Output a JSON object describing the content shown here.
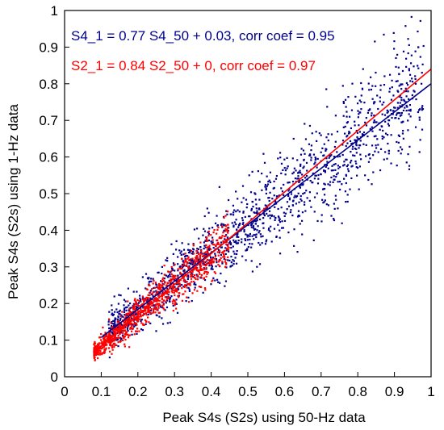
{
  "chart_data": {
    "type": "scatter",
    "xlabel": "Peak S4s (S2s) using 50-Hz data",
    "ylabel": "Peak S4s (S2s) using 1-Hz data",
    "xlim": [
      0,
      1
    ],
    "ylim": [
      0,
      1
    ],
    "xticks": [
      "0",
      "0.1",
      "0.2",
      "0.3",
      "0.4",
      "0.5",
      "0.6",
      "0.7",
      "0.8",
      "0.9",
      "1"
    ],
    "yticks": [
      "0",
      "0.1",
      "0.2",
      "0.3",
      "0.4",
      "0.5",
      "0.6",
      "0.7",
      "0.8",
      "0.9",
      "1"
    ],
    "grid": false,
    "series": [
      {
        "name": "S4",
        "color": "#00008b",
        "fit": {
          "slope": 0.77,
          "intercept": 0.03,
          "x_range": [
            0.1,
            1.0
          ]
        },
        "x_range": [
          0.12,
          0.98
        ],
        "spread": 0.055,
        "count": 1500,
        "annotation": "S4_1 = 0.77 S4_50 + 0.03, corr coef = 0.95"
      },
      {
        "name": "S2",
        "color": "#ff0000",
        "fit": {
          "slope": 0.84,
          "intercept": 0,
          "x_range": [
            0.1,
            1.0
          ]
        },
        "x_range": [
          0.08,
          0.45
        ],
        "spread": 0.025,
        "count": 1000,
        "annotation": "S2_1 = 0.84 S2_50 + 0, corr coef = 0.97"
      }
    ]
  }
}
